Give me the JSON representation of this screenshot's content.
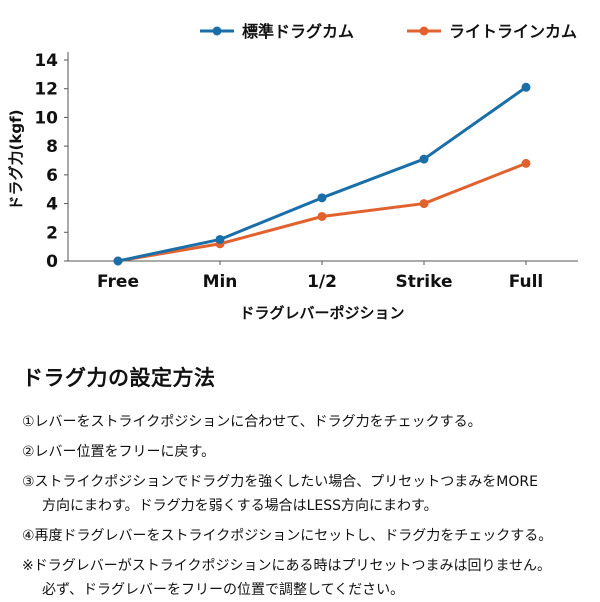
{
  "chart_data": {
    "type": "line",
    "categories": [
      "Free",
      "Min",
      "1/2",
      "Strike",
      "Full"
    ],
    "series": [
      {
        "name": "標準ドラグカム",
        "values": [
          0,
          1.5,
          4.4,
          7.1,
          12.1
        ],
        "color": "#1a6fa8"
      },
      {
        "name": "ライトラインカム",
        "values": [
          0,
          1.2,
          3.1,
          4.0,
          6.8
        ],
        "color": "#e2622f"
      }
    ],
    "xlabel": "ドラグレバーポジション",
    "ylabel": "ドラグ力(kgf)",
    "ylim": [
      0,
      14
    ],
    "yticks": [
      0,
      2,
      4,
      6,
      8,
      10,
      12,
      14
    ],
    "legend_position": "top-right",
    "grid": false
  },
  "guide": {
    "title": "ドラグ力の設定方法",
    "steps": [
      {
        "line1": "①レバーをストライクポジションに合わせて、ドラグ力をチェックする。",
        "line2": ""
      },
      {
        "line1": "②レバー位置をフリーに戻す。",
        "line2": ""
      },
      {
        "line1": "③ストライクポジションでドラグ力を強くしたい場合、プリセットつまみをMORE",
        "line2": "方向にまわす。ドラグ力を弱くする場合はLESS方向にまわす。"
      },
      {
        "line1": "④再度ドラグレバーをストライクポジションにセットし、ドラグ力をチェックする。",
        "line2": ""
      }
    ],
    "note_line1": "※ドラグレバーがストライクポジションにある時はプリセットつまみは回りません。",
    "note_line2": "必ず、ドラグレバーをフリーの位置で調整してください。"
  }
}
